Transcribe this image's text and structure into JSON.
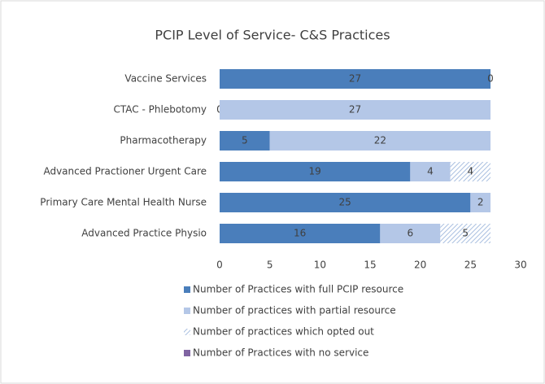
{
  "chart_data": {
    "type": "stacked_barh",
    "title": "PCIP Level of Service- C&S Practices",
    "categories": [
      "Vaccine Services",
      "CTAC - Phlebotomy",
      "Pharmacotherapy",
      "Advanced Practioner Urgent Care",
      "Primary Care Mental Health Nurse",
      "Advanced Practice Physio"
    ],
    "series": [
      {
        "name": "Number of Practices with full PCIP resource",
        "color": "#4a7ebb",
        "values": [
          27,
          0,
          5,
          19,
          25,
          16
        ]
      },
      {
        "name": "Number of practices with partial resource",
        "color": "#b4c7e7",
        "values": [
          0,
          27,
          22,
          4,
          2,
          6
        ]
      },
      {
        "name": "Number of practices which opted out",
        "color": "#a9bfe0",
        "hatch": true,
        "values": [
          null,
          null,
          null,
          4,
          null,
          5
        ]
      },
      {
        "name": "Number of Practices with no service",
        "color": "#8064a2",
        "values": [
          null,
          null,
          null,
          null,
          null,
          null
        ]
      }
    ],
    "xlim": [
      0,
      30
    ],
    "xticks": [
      0,
      5,
      10,
      15,
      20,
      25,
      30
    ],
    "grid": false,
    "legend": "bottom"
  }
}
